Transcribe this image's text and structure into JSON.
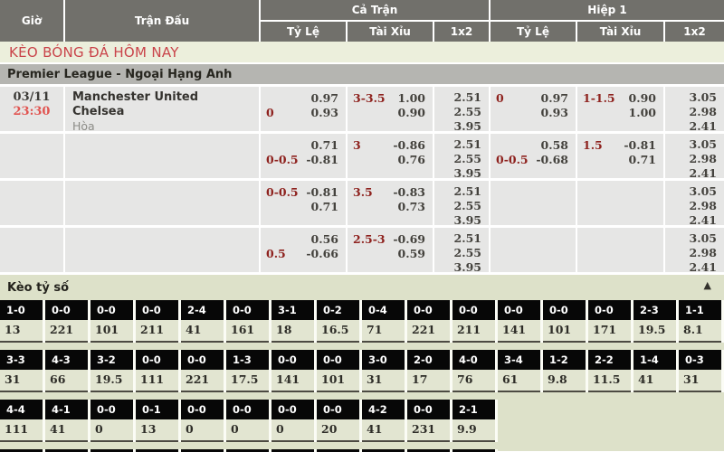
{
  "header": {
    "col_time": "Giờ",
    "col_match": "Trận Đấu",
    "col_full_match": "Cả Trận",
    "col_first_half": "Hiệp 1",
    "sub_ft": [
      "Tỷ Lệ",
      "Tài Xỉu",
      "1x2"
    ],
    "sub_h1": [
      "Tỷ Lệ",
      "Tài Xỉu",
      "1x2"
    ]
  },
  "page_title": "KÈO BÓNG ĐÁ HÔM NAY",
  "league_title": "Premier League - Ngoại Hạng Anh",
  "match": {
    "date": "03/11",
    "time": "23:30",
    "teams": [
      "Manchester United",
      "Chelsea"
    ],
    "draw": "Hòa"
  },
  "odds_rows": [
    {
      "ft_hdp": [
        [
          "",
          "0.97"
        ],
        [
          "0",
          "0.93"
        ]
      ],
      "ft_ou": [
        [
          "3-3.5",
          "1.00"
        ],
        [
          "",
          "0.90"
        ]
      ],
      "ft_1x2": [
        "2.51",
        "2.55",
        "3.95"
      ],
      "h1_hdp": [
        [
          "0",
          "0.97"
        ],
        [
          "",
          "0.93"
        ]
      ],
      "h1_ou": [
        [
          "1-1.5",
          "0.90"
        ],
        [
          "",
          "1.00"
        ]
      ],
      "h1_1x2": [
        "3.05",
        "2.98",
        "2.41"
      ]
    },
    {
      "ft_hdp": [
        [
          "",
          "0.71"
        ],
        [
          "0-0.5",
          "-0.81"
        ]
      ],
      "ft_ou": [
        [
          "3",
          "-0.86"
        ],
        [
          "",
          "0.76"
        ]
      ],
      "ft_1x2": [
        "2.51",
        "2.55",
        "3.95"
      ],
      "h1_hdp": [
        [
          "",
          "0.58"
        ],
        [
          "0-0.5",
          "-0.68"
        ]
      ],
      "h1_ou": [
        [
          "1.5",
          "-0.81"
        ],
        [
          "",
          "0.71"
        ]
      ],
      "h1_1x2": [
        "3.05",
        "2.98",
        "2.41"
      ]
    },
    {
      "ft_hdp": [
        [
          "0-0.5",
          "-0.81"
        ],
        [
          "",
          "0.71"
        ]
      ],
      "ft_ou": [
        [
          "3.5",
          "-0.83"
        ],
        [
          "",
          "0.73"
        ]
      ],
      "ft_1x2": [
        "2.51",
        "2.55",
        "3.95"
      ],
      "h1_hdp": [],
      "h1_ou": [],
      "h1_1x2": [
        "3.05",
        "2.98",
        "2.41"
      ]
    },
    {
      "ft_hdp": [
        [
          "",
          "0.56"
        ],
        [
          "0.5",
          "-0.66"
        ]
      ],
      "ft_ou": [
        [
          "2.5-3",
          "-0.69"
        ],
        [
          "",
          "0.59"
        ]
      ],
      "ft_1x2": [
        "2.51",
        "2.55",
        "3.95"
      ],
      "h1_hdp": [],
      "h1_ou": [],
      "h1_1x2": [
        "3.05",
        "2.98",
        "2.41"
      ]
    }
  ],
  "score_section": {
    "title": "Kèo tỷ số",
    "collapse_icon": "▲",
    "partial_row_cells": 11,
    "rows": [
      [
        {
          "score": "1-0",
          "odds": "13"
        },
        {
          "score": "0-0",
          "odds": "221"
        },
        {
          "score": "0-0",
          "odds": "101"
        },
        {
          "score": "0-0",
          "odds": "211"
        },
        {
          "score": "2-4",
          "odds": "41"
        },
        {
          "score": "0-0",
          "odds": "161"
        },
        {
          "score": "3-1",
          "odds": "18"
        },
        {
          "score": "0-2",
          "odds": "16.5"
        },
        {
          "score": "0-4",
          "odds": "71"
        },
        {
          "score": "0-0",
          "odds": "221"
        },
        {
          "score": "0-0",
          "odds": "211"
        },
        {
          "score": "0-0",
          "odds": "141"
        },
        {
          "score": "0-0",
          "odds": "101"
        },
        {
          "score": "0-0",
          "odds": "171"
        },
        {
          "score": "2-3",
          "odds": "19.5"
        },
        {
          "score": "1-1",
          "odds": "8.1"
        }
      ],
      [
        {
          "score": "3-3",
          "odds": "31"
        },
        {
          "score": "4-3",
          "odds": "66"
        },
        {
          "score": "3-2",
          "odds": "19.5"
        },
        {
          "score": "0-0",
          "odds": "111"
        },
        {
          "score": "0-0",
          "odds": "221"
        },
        {
          "score": "1-3",
          "odds": "17.5"
        },
        {
          "score": "0-0",
          "odds": "141"
        },
        {
          "score": "0-0",
          "odds": "101"
        },
        {
          "score": "3-0",
          "odds": "31"
        },
        {
          "score": "2-0",
          "odds": "17"
        },
        {
          "score": "4-0",
          "odds": "76"
        },
        {
          "score": "3-4",
          "odds": "61"
        },
        {
          "score": "1-2",
          "odds": "9.8"
        },
        {
          "score": "2-2",
          "odds": "11.5"
        },
        {
          "score": "1-4",
          "odds": "41"
        },
        {
          "score": "0-3",
          "odds": "31"
        }
      ],
      [
        {
          "score": "4-4",
          "odds": "111"
        },
        {
          "score": "4-1",
          "odds": "41"
        },
        {
          "score": "0-0",
          "odds": "0"
        },
        {
          "score": "0-1",
          "odds": "13"
        },
        {
          "score": "0-0",
          "odds": "0"
        },
        {
          "score": "0-0",
          "odds": "0"
        },
        {
          "score": "0-0",
          "odds": "0"
        },
        {
          "score": "0-0",
          "odds": "20"
        },
        {
          "score": "4-2",
          "odds": "41"
        },
        {
          "score": "0-0",
          "odds": "231"
        },
        {
          "score": "2-1",
          "odds": "9.9"
        }
      ]
    ]
  },
  "colors": {
    "header_bg": "#71706b",
    "title_bar_bg": "#ecefdc",
    "title_text": "#c9444a",
    "league_bar_bg": "#b5b5b1",
    "cell_bg": "#e6e6e5",
    "handicap_red": "#8e221e",
    "time_red": "#e15450",
    "score_section_bg": "#dde1c9",
    "score_cell_bg": "#070707"
  }
}
